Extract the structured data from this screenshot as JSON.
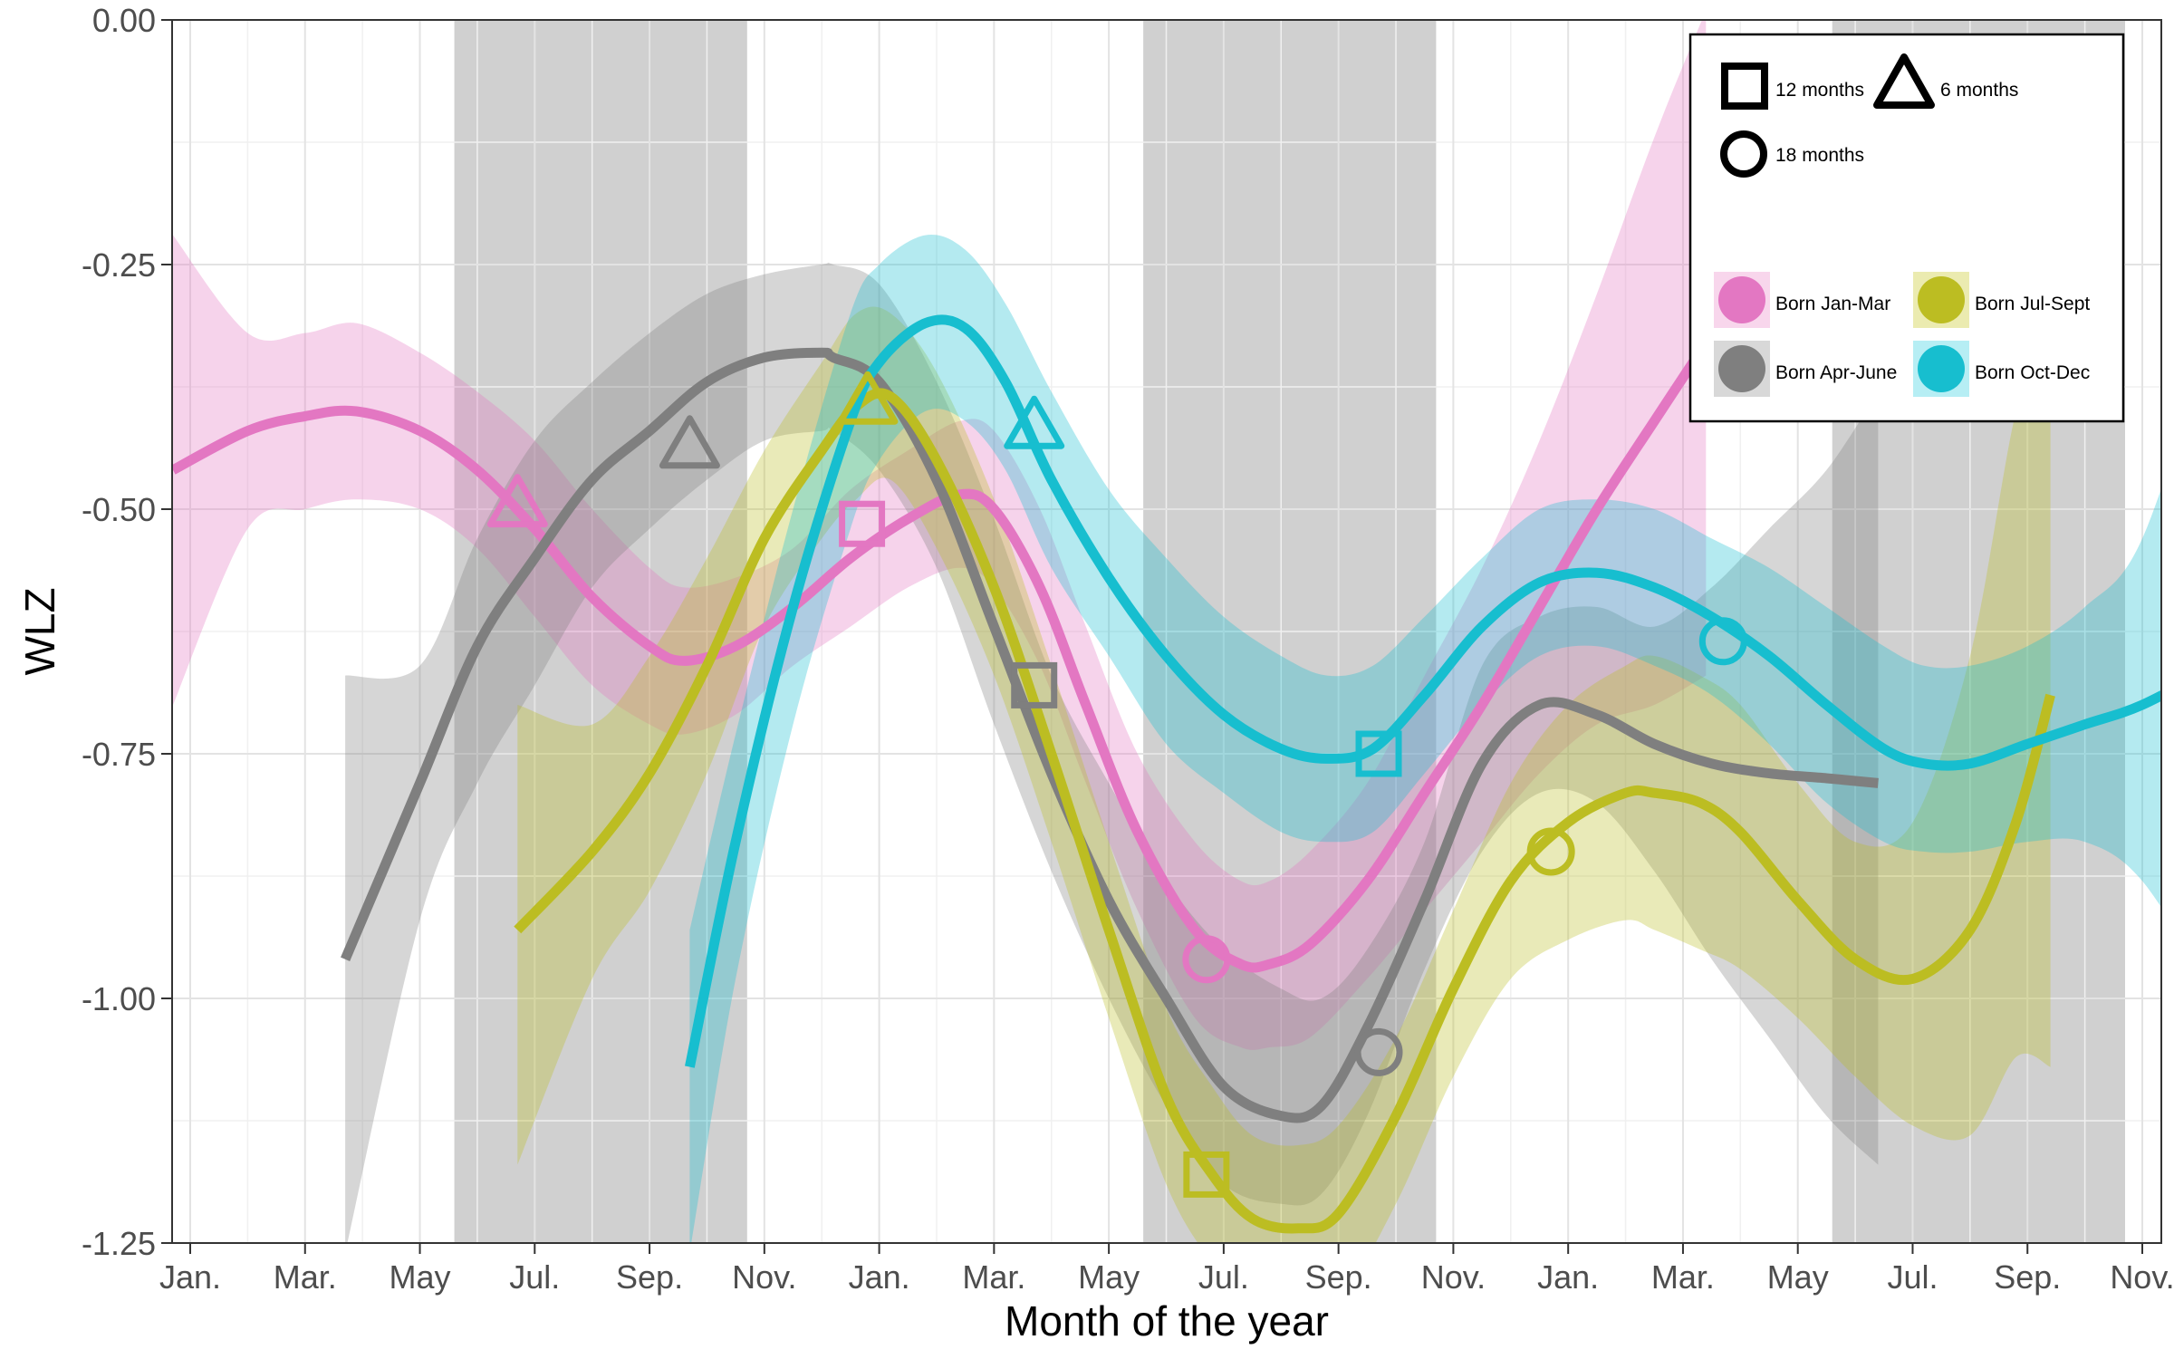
{
  "chart_data": {
    "type": "line",
    "title": "",
    "xlabel": "Month of the year",
    "ylabel": "WLZ",
    "xlim": [
      0,
      34.0
    ],
    "ylim": [
      -1.25,
      0.0
    ],
    "x_ticks": [
      {
        "pos": 0,
        "label": "Jan."
      },
      {
        "pos": 2,
        "label": "Mar."
      },
      {
        "pos": 4,
        "label": "May"
      },
      {
        "pos": 6,
        "label": "Jul."
      },
      {
        "pos": 8,
        "label": "Sep."
      },
      {
        "pos": 10,
        "label": "Nov."
      },
      {
        "pos": 12,
        "label": "Jan."
      },
      {
        "pos": 14,
        "label": "Mar."
      },
      {
        "pos": 16,
        "label": "May"
      },
      {
        "pos": 18,
        "label": "Jul."
      },
      {
        "pos": 20,
        "label": "Sep."
      },
      {
        "pos": 22,
        "label": "Nov."
      },
      {
        "pos": 24,
        "label": "Jan."
      },
      {
        "pos": 26,
        "label": "Mar."
      },
      {
        "pos": 28,
        "label": "May"
      },
      {
        "pos": 30,
        "label": "Jul."
      },
      {
        "pos": 32,
        "label": "Sep."
      },
      {
        "pos": 34,
        "label": "Nov."
      }
    ],
    "y_ticks": [
      {
        "value": 0.0,
        "label": "0.00"
      },
      {
        "value": -0.25,
        "label": "-0.25"
      },
      {
        "value": -0.5,
        "label": "-0.50"
      },
      {
        "value": -0.75,
        "label": "-0.75"
      },
      {
        "value": -1.0,
        "label": "-1.00"
      },
      {
        "value": -1.25,
        "label": "-1.25"
      }
    ],
    "grid": true,
    "shaded_periods": [
      {
        "start": 4.6,
        "end": 9.7
      },
      {
        "start": 16.6,
        "end": 21.7
      },
      {
        "start": 28.6,
        "end": 33.7
      }
    ],
    "series": [
      {
        "name": "Born Jan-Mar",
        "color": "#e377c2",
        "x": [
          -0.3,
          1,
          2,
          2.9,
          4,
          5,
          6,
          7,
          8,
          8.6,
          9.5,
          10.5,
          11.5,
          12.5,
          13.4,
          14,
          14.8,
          15.6,
          16.5,
          17.5,
          18.3,
          18.8,
          19.5,
          20.5,
          21.5,
          22.5,
          23.5,
          24.5,
          25.5,
          26.4
        ],
        "y": [
          -0.46,
          -0.42,
          -0.405,
          -0.4,
          -0.42,
          -0.46,
          -0.52,
          -0.59,
          -0.64,
          -0.655,
          -0.64,
          -0.6,
          -0.55,
          -0.51,
          -0.485,
          -0.5,
          -0.58,
          -0.7,
          -0.83,
          -0.93,
          -0.965,
          -0.965,
          -0.945,
          -0.88,
          -0.79,
          -0.7,
          -0.6,
          -0.5,
          -0.41,
          -0.33
        ],
        "ci_upper": [
          -0.22,
          -0.32,
          -0.32,
          -0.31,
          -0.34,
          -0.38,
          -0.43,
          -0.5,
          -0.56,
          -0.58,
          -0.57,
          -0.54,
          -0.48,
          -0.44,
          -0.41,
          -0.42,
          -0.5,
          -0.62,
          -0.75,
          -0.84,
          -0.88,
          -0.88,
          -0.85,
          -0.78,
          -0.67,
          -0.56,
          -0.43,
          -0.28,
          -0.12,
          0.01
        ],
        "ci_lower": [
          -0.7,
          -0.52,
          -0.5,
          -0.49,
          -0.5,
          -0.54,
          -0.61,
          -0.68,
          -0.72,
          -0.73,
          -0.71,
          -0.66,
          -0.62,
          -0.58,
          -0.56,
          -0.58,
          -0.66,
          -0.78,
          -0.91,
          -1.02,
          -1.05,
          -1.05,
          -1.04,
          -0.98,
          -0.91,
          -0.84,
          -0.77,
          -0.72,
          -0.7,
          -0.67
        ]
      },
      {
        "name": "Born Apr-June",
        "color": "#7f7f7f",
        "x": [
          2.7,
          4,
          5,
          6,
          7,
          8,
          9,
          10,
          11,
          11.2,
          12,
          13,
          14,
          15,
          16,
          17,
          18,
          19,
          19.7,
          20.5,
          21.5,
          22.5,
          23.5,
          24.5,
          25.5,
          26.5,
          27.5,
          28.5,
          29.4
        ],
        "y": [
          -0.96,
          -0.78,
          -0.64,
          -0.55,
          -0.47,
          -0.42,
          -0.37,
          -0.345,
          -0.34,
          -0.345,
          -0.37,
          -0.47,
          -0.62,
          -0.77,
          -0.9,
          -1.0,
          -1.09,
          -1.12,
          -1.11,
          -1.03,
          -0.9,
          -0.76,
          -0.7,
          -0.71,
          -0.74,
          -0.76,
          -0.77,
          -0.775,
          -0.78
        ],
        "ci_upper": [
          -0.67,
          -0.66,
          -0.53,
          -0.43,
          -0.37,
          -0.32,
          -0.28,
          -0.26,
          -0.25,
          -0.25,
          -0.27,
          -0.37,
          -0.51,
          -0.67,
          -0.78,
          -0.88,
          -0.95,
          -0.99,
          -1.0,
          -0.95,
          -0.84,
          -0.66,
          -0.61,
          -0.6,
          -0.62,
          -0.58,
          -0.52,
          -0.46,
          -0.38
        ],
        "ci_lower": [
          -1.26,
          -0.92,
          -0.78,
          -0.68,
          -0.58,
          -0.52,
          -0.47,
          -0.43,
          -0.42,
          -0.42,
          -0.46,
          -0.56,
          -0.72,
          -0.87,
          -1.0,
          -1.11,
          -1.19,
          -1.21,
          -1.2,
          -1.12,
          -0.97,
          -0.85,
          -0.79,
          -0.8,
          -0.87,
          -0.96,
          -1.04,
          -1.12,
          -1.17
        ]
      },
      {
        "name": "Born Jul-Sept",
        "color": "#bcbd22",
        "x": [
          5.7,
          7,
          8,
          9,
          10,
          11,
          11.6,
          12.2,
          13,
          14,
          15,
          16,
          17,
          17.8,
          18.5,
          19.3,
          20,
          21,
          22,
          23,
          24,
          25,
          25.5,
          26.3,
          27,
          28,
          29,
          30,
          31,
          31.8,
          32.4
        ],
        "y": [
          -0.93,
          -0.85,
          -0.77,
          -0.66,
          -0.53,
          -0.44,
          -0.395,
          -0.385,
          -0.45,
          -0.58,
          -0.75,
          -0.93,
          -1.1,
          -1.18,
          -1.225,
          -1.235,
          -1.22,
          -1.12,
          -0.99,
          -0.88,
          -0.82,
          -0.79,
          -0.79,
          -0.8,
          -0.83,
          -0.9,
          -0.96,
          -0.98,
          -0.93,
          -0.82,
          -0.69
        ],
        "ci_upper": [
          -0.7,
          -0.72,
          -0.65,
          -0.55,
          -0.44,
          -0.35,
          -0.3,
          -0.3,
          -0.36,
          -0.49,
          -0.66,
          -0.84,
          -1.01,
          -1.09,
          -1.14,
          -1.15,
          -1.13,
          -1.04,
          -0.91,
          -0.78,
          -0.7,
          -0.66,
          -0.65,
          -0.67,
          -0.7,
          -0.78,
          -0.84,
          -0.82,
          -0.65,
          -0.4,
          -0.31
        ],
        "ci_lower": [
          -1.17,
          -0.98,
          -0.89,
          -0.77,
          -0.62,
          -0.53,
          -0.49,
          -0.47,
          -0.54,
          -0.67,
          -0.84,
          -1.02,
          -1.19,
          -1.27,
          -1.31,
          -1.32,
          -1.31,
          -1.21,
          -1.08,
          -0.98,
          -0.94,
          -0.92,
          -0.93,
          -0.95,
          -0.97,
          -1.02,
          -1.08,
          -1.13,
          -1.14,
          -1.06,
          -1.07
        ]
      },
      {
        "name": "Born Oct-Dec",
        "color": "#17becf",
        "x": [
          8.7,
          9.5,
          10.5,
          11.5,
          12,
          12.8,
          13.5,
          14.2,
          15,
          16,
          17,
          18,
          19,
          19.8,
          20.6,
          21.5,
          22.5,
          23.5,
          24.5,
          25.5,
          26.5,
          27.5,
          28.5,
          29.5,
          30.2,
          31,
          32,
          33,
          34,
          35.3
        ],
        "y": [
          -1.07,
          -0.84,
          -0.6,
          -0.41,
          -0.35,
          -0.31,
          -0.315,
          -0.37,
          -0.47,
          -0.57,
          -0.65,
          -0.71,
          -0.745,
          -0.755,
          -0.745,
          -0.69,
          -0.62,
          -0.575,
          -0.565,
          -0.58,
          -0.61,
          -0.65,
          -0.7,
          -0.745,
          -0.76,
          -0.76,
          -0.74,
          -0.72,
          -0.7,
          -0.66
        ],
        "ci_upper": [
          -0.93,
          -0.73,
          -0.5,
          -0.3,
          -0.25,
          -0.22,
          -0.235,
          -0.29,
          -0.38,
          -0.48,
          -0.55,
          -0.61,
          -0.65,
          -0.67,
          -0.66,
          -0.61,
          -0.55,
          -0.5,
          -0.49,
          -0.5,
          -0.53,
          -0.56,
          -0.6,
          -0.64,
          -0.66,
          -0.66,
          -0.64,
          -0.6,
          -0.53,
          -0.3
        ],
        "ci_lower": [
          -1.26,
          -0.98,
          -0.72,
          -0.52,
          -0.45,
          -0.4,
          -0.41,
          -0.46,
          -0.56,
          -0.65,
          -0.74,
          -0.79,
          -0.83,
          -0.84,
          -0.83,
          -0.77,
          -0.7,
          -0.65,
          -0.64,
          -0.66,
          -0.69,
          -0.74,
          -0.8,
          -0.84,
          -0.85,
          -0.85,
          -0.84,
          -0.84,
          -0.88,
          -1.0
        ]
      }
    ],
    "age_markers": [
      {
        "series": 0,
        "shape": "triangle",
        "x": 5.7,
        "y": -0.495
      },
      {
        "series": 0,
        "shape": "square",
        "x": 11.7,
        "y": -0.515
      },
      {
        "series": 0,
        "shape": "circle",
        "x": 17.7,
        "y": -0.96
      },
      {
        "series": 1,
        "shape": "triangle",
        "x": 8.7,
        "y": -0.435
      },
      {
        "series": 1,
        "shape": "square",
        "x": 14.7,
        "y": -0.68
      },
      {
        "series": 1,
        "shape": "circle",
        "x": 20.7,
        "y": -1.055
      },
      {
        "series": 2,
        "shape": "triangle",
        "x": 11.8,
        "y": -0.39
      },
      {
        "series": 2,
        "shape": "square",
        "x": 17.7,
        "y": -1.18
      },
      {
        "series": 2,
        "shape": "circle",
        "x": 23.7,
        "y": -0.85
      },
      {
        "series": 3,
        "shape": "triangle",
        "x": 14.7,
        "y": -0.415
      },
      {
        "series": 3,
        "shape": "square",
        "x": 20.7,
        "y": -0.75
      },
      {
        "series": 3,
        "shape": "circle",
        "x": 26.7,
        "y": -0.635
      }
    ],
    "legend": {
      "placement": "top-right",
      "shapes": [
        {
          "shape": "square",
          "label": "12 months"
        },
        {
          "shape": "triangle",
          "label": "6 months"
        },
        {
          "shape": "circle",
          "label": "18 months"
        }
      ]
    }
  }
}
